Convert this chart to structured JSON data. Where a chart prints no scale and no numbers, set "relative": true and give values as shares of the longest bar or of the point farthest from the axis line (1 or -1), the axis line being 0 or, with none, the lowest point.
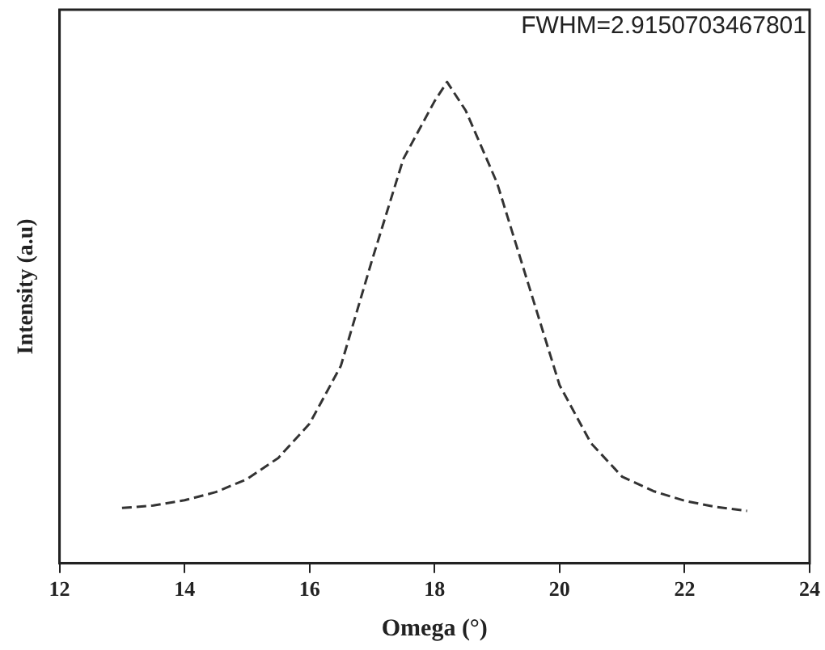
{
  "chart_data": {
    "type": "line",
    "xlabel": "Omega (°)",
    "ylabel": "Intensity (a.u)",
    "relative": true,
    "x": [
      13,
      13.5,
      14,
      14.5,
      15,
      15.5,
      16,
      16.5,
      17,
      17.5,
      18,
      18.2,
      18.5,
      19,
      19.5,
      20,
      20.5,
      21,
      21.5,
      22,
      22.5,
      23
    ],
    "series": [
      {
        "color": "#333333",
        "values": [
          0.115,
          0.12,
          0.131,
          0.148,
          0.175,
          0.219,
          0.29,
          0.41,
          0.63,
          0.84,
          0.96,
          1,
          0.94,
          0.79,
          0.58,
          0.37,
          0.25,
          0.18,
          0.15,
          0.13,
          0.117,
          0.109
        ]
      }
    ],
    "xlim": [
      12,
      24
    ],
    "xticks": [
      12,
      14,
      16,
      18,
      20,
      22,
      24
    ],
    "annotations": [
      "FWHM=2.9150703467801"
    ],
    "grid": false,
    "legend": false,
    "marker": "none",
    "line_style": "dashed"
  }
}
